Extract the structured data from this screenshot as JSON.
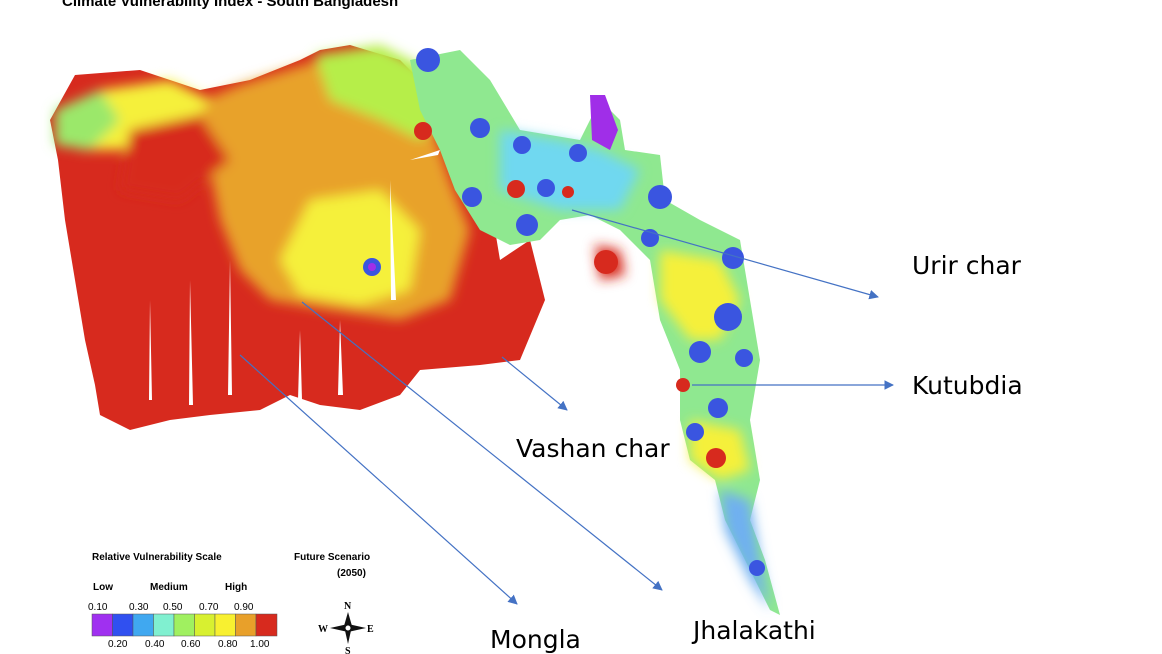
{
  "title": "Climate Vulnerability Index - South Bangladesh",
  "annotations": [
    "Urir char",
    "Kutubdia",
    "Vashan char",
    "Jhalakathi",
    "Mongla"
  ],
  "legend": {
    "title": "Relative Vulnerability Scale",
    "levels": [
      "Low",
      "Medium",
      "High"
    ],
    "upper_ticks": [
      "0.10",
      "0.30",
      "0.50",
      "0.70",
      "0.90"
    ],
    "lower_ticks": [
      "0.20",
      "0.40",
      "0.60",
      "0.80",
      "1.00"
    ]
  },
  "scenario": {
    "title": "Future Scenario",
    "period": "(2050)"
  },
  "compass": {
    "north": "N",
    "east": "E",
    "west": "W",
    "south": "S"
  }
}
